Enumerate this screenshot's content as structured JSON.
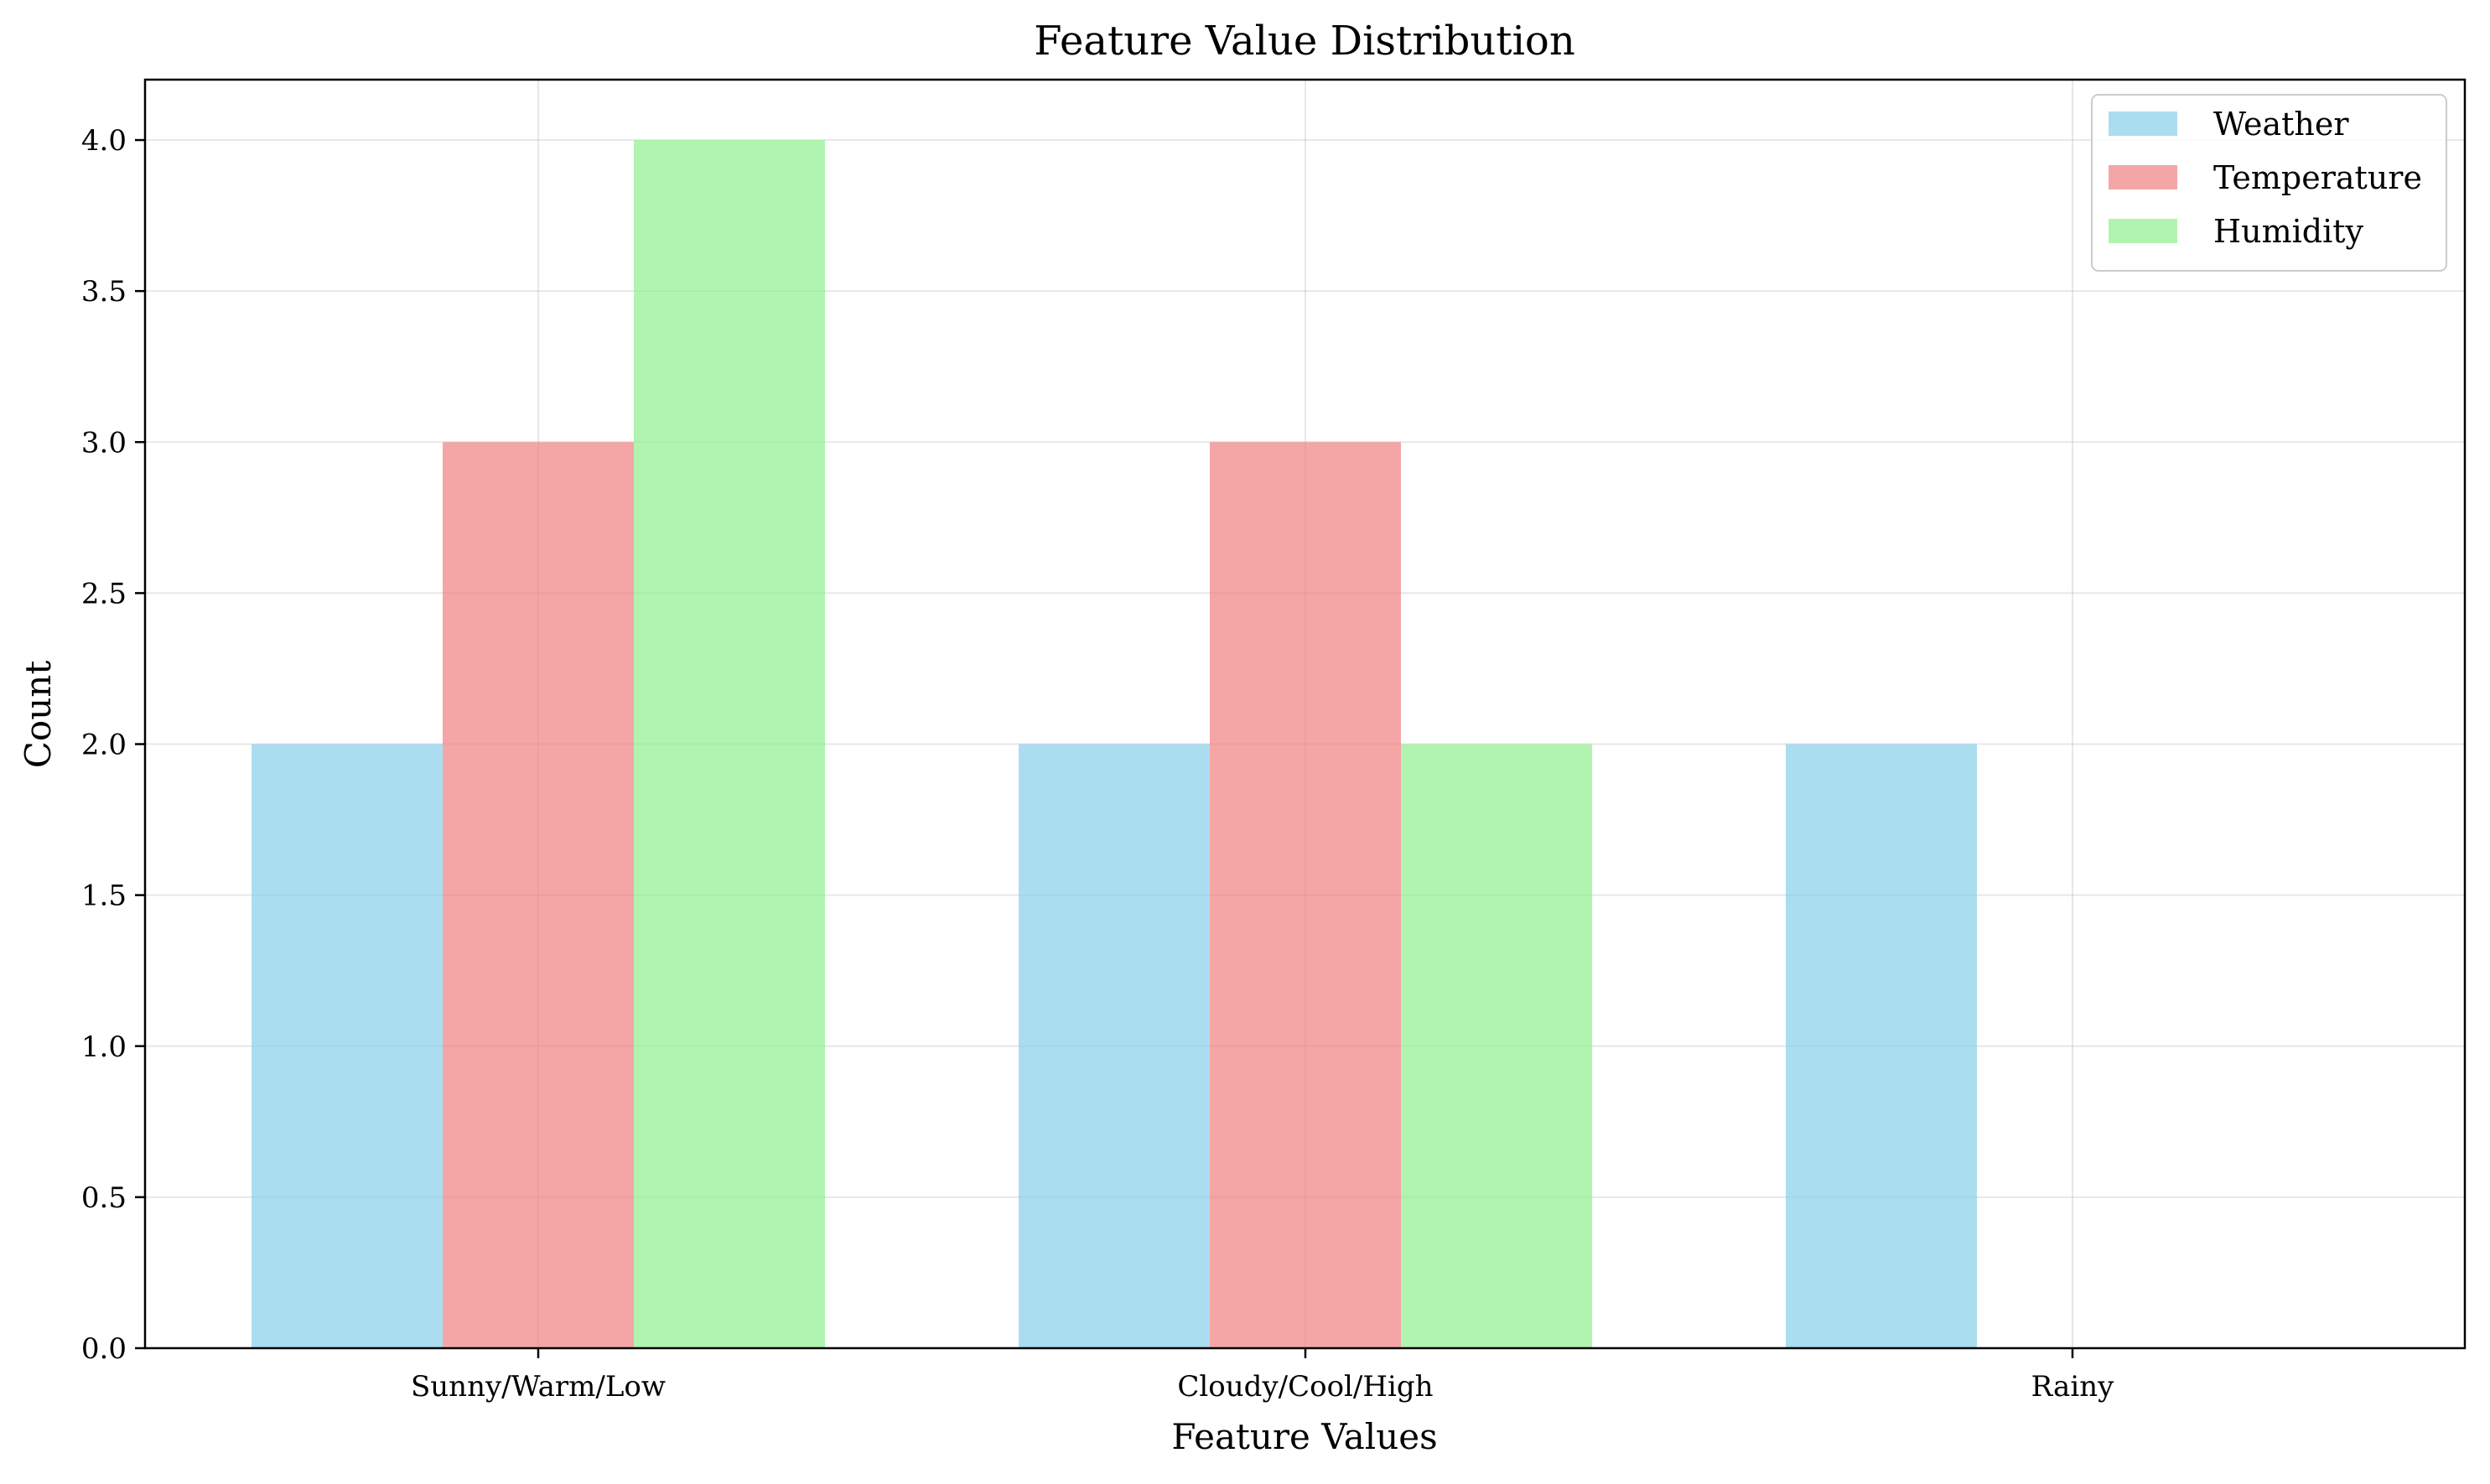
{
  "chart_data": {
    "type": "bar",
    "title": "Feature Value Distribution",
    "xlabel": "Feature Values",
    "ylabel": "Count",
    "categories": [
      "Sunny/Warm/Low",
      "Cloudy/Cool/High",
      "Rainy"
    ],
    "series": [
      {
        "name": "Weather",
        "values": [
          2,
          2,
          2
        ],
        "color": "#87CEEB"
      },
      {
        "name": "Temperature",
        "values": [
          3,
          3,
          0
        ],
        "color": "#F08080"
      },
      {
        "name": "Humidity",
        "values": [
          4,
          2,
          0
        ],
        "color": "#90EE90"
      }
    ],
    "ylim": [
      0,
      4.2
    ],
    "yticks": [
      0.0,
      0.5,
      1.0,
      1.5,
      2.0,
      2.5,
      3.0,
      3.5,
      4.0
    ],
    "ytick_labels": [
      "0.0",
      "0.5",
      "1.0",
      "1.5",
      "2.0",
      "2.5",
      "3.0",
      "3.5",
      "4.0"
    ],
    "grid": true,
    "legend_position": "top-right",
    "bar_opacity": 0.7
  }
}
